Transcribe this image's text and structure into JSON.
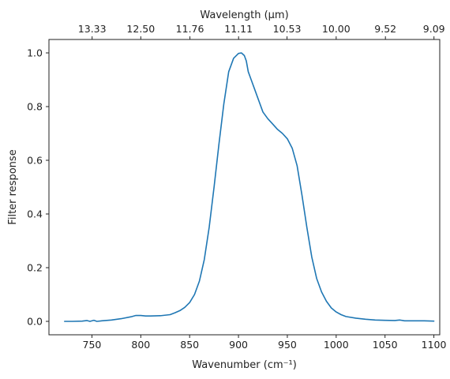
{
  "chart_data": {
    "type": "line",
    "xlabel": "Wavenumber (cm⁻¹)",
    "ylabel": "Filter response",
    "top_xlabel": "Wavelength (μm)",
    "xlim": [
      706,
      1106
    ],
    "ylim": [
      -0.05,
      1.05
    ],
    "grid": false,
    "xticks": [
      750,
      800,
      850,
      900,
      950,
      1000,
      1050,
      1100
    ],
    "yticks": [
      0.0,
      0.2,
      0.4,
      0.6,
      0.8,
      1.0
    ],
    "x_tick_labels": [
      "750",
      "800",
      "850",
      "900",
      "950",
      "1000",
      "1050",
      "1100"
    ],
    "y_tick_labels": [
      "0.0",
      "0.2",
      "0.4",
      "0.6",
      "0.8",
      "1.0"
    ],
    "top_ticks": [
      {
        "wavenumber": 750.2,
        "label": "13.33"
      },
      {
        "wavenumber": 800.0,
        "label": "12.50"
      },
      {
        "wavenumber": 850.3,
        "label": "11.76"
      },
      {
        "wavenumber": 900.1,
        "label": "11.11"
      },
      {
        "wavenumber": 949.7,
        "label": "10.53"
      },
      {
        "wavenumber": 1000.0,
        "label": "10.00"
      },
      {
        "wavenumber": 1050.4,
        "label": "9.52"
      },
      {
        "wavenumber": 1100.1,
        "label": "9.09"
      }
    ],
    "series": [
      {
        "color": "#1f77b4",
        "x": [
          722,
          730,
          740,
          745,
          748,
          752,
          755,
          760,
          770,
          780,
          790,
          795,
          800,
          805,
          810,
          820,
          830,
          835,
          840,
          845,
          850,
          855,
          860,
          865,
          870,
          875,
          880,
          885,
          890,
          895,
          900,
          903,
          906,
          908,
          910,
          913,
          916,
          920,
          925,
          930,
          935,
          940,
          945,
          950,
          955,
          960,
          965,
          970,
          975,
          980,
          985,
          990,
          995,
          1000,
          1005,
          1010,
          1020,
          1030,
          1040,
          1050,
          1060,
          1065,
          1070,
          1080,
          1090,
          1100
        ],
        "y": [
          0.0,
          0.0,
          0.001,
          0.003,
          0.0,
          0.004,
          0.0,
          0.002,
          0.005,
          0.01,
          0.017,
          0.022,
          0.022,
          0.02,
          0.02,
          0.021,
          0.025,
          0.032,
          0.04,
          0.052,
          0.07,
          0.1,
          0.15,
          0.23,
          0.35,
          0.5,
          0.66,
          0.81,
          0.93,
          0.98,
          0.998,
          1.0,
          0.99,
          0.97,
          0.93,
          0.9,
          0.87,
          0.83,
          0.78,
          0.755,
          0.735,
          0.715,
          0.7,
          0.68,
          0.645,
          0.58,
          0.47,
          0.35,
          0.24,
          0.16,
          0.11,
          0.075,
          0.05,
          0.035,
          0.025,
          0.018,
          0.012,
          0.008,
          0.005,
          0.004,
          0.003,
          0.005,
          0.002,
          0.002,
          0.002,
          0.001
        ]
      }
    ]
  }
}
